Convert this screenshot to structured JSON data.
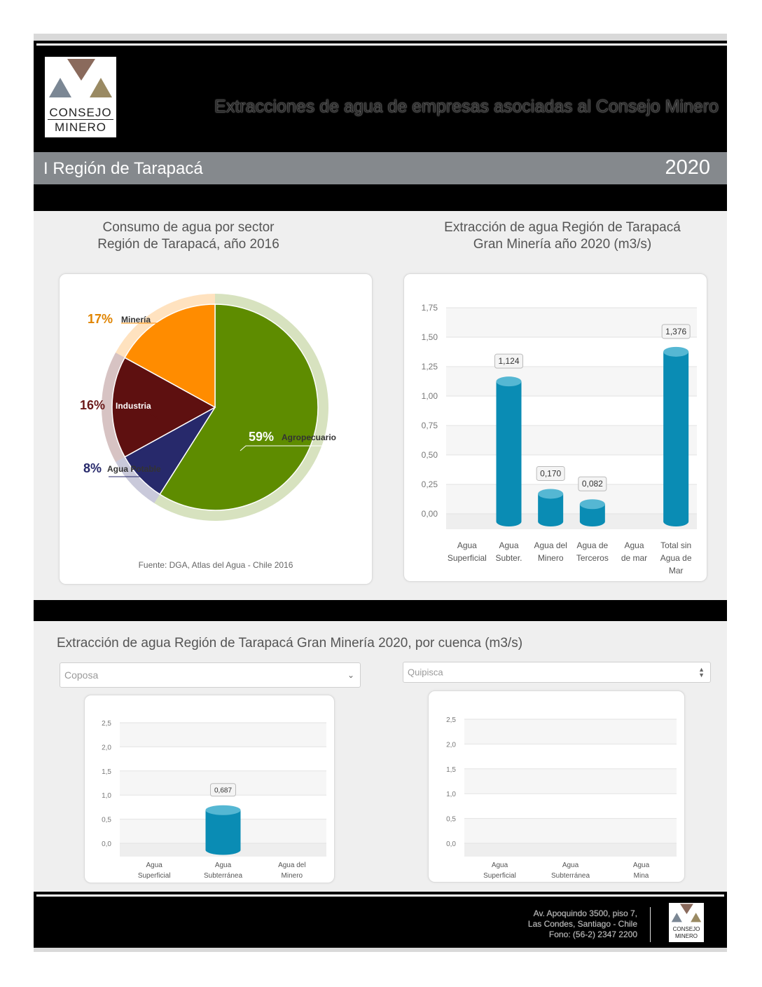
{
  "header": {
    "logo_line1": "CONSEJO",
    "logo_line2": "MINERO",
    "title": "Extracciones de agua de empresas asociadas al Consejo Minero",
    "region": "I Región de Tarapacá",
    "year": "2020"
  },
  "pie_panel": {
    "title_line1": "Consumo de agua por sector",
    "title_line2": "Región de Tarapacá, año 2016",
    "source": "Fuente: DGA, Atlas del Agua - Chile 2016"
  },
  "bar_panel": {
    "title_line1": "Extracción de agua Región de Tarapacá",
    "title_line2": "Gran Minería año 2020 (m3/s)"
  },
  "basin_section": {
    "title": "Extracción de agua Región de Tarapacá Gran Minería 2020, por cuenca (m3/s)",
    "select_left": "Coposa",
    "select_right": "Quipisca"
  },
  "footer": {
    "address_line1": "Av. Apoquindo 3500, piso 7,",
    "address_line2": "Las Condes, Santiago - Chile",
    "phone": "Fono: (56-2) 2347 2200",
    "logo_line1": "CONSEJO",
    "logo_line2": "MINERO"
  },
  "colors": {
    "agropecuario": "#5e8c00",
    "agua_potable": "#27296b",
    "industria": "#5e1010",
    "mineria": "#ff8c00",
    "bar": "#0a8cb4",
    "bar_top": "#55b7d3",
    "label_mineria": "#e08400",
    "label_industria": "#6b1a1a",
    "label_potable": "#27296b"
  },
  "chart_data": [
    {
      "type": "pie",
      "slices": [
        {
          "label": "Agropecuario",
          "pct_label": "59%",
          "value": 59
        },
        {
          "label": "Agua Potable",
          "pct_label": "8%",
          "value": 8
        },
        {
          "label": "Industria",
          "pct_label": "16%",
          "value": 16
        },
        {
          "label": "Minería",
          "pct_label": "17%",
          "value": 17
        }
      ]
    },
    {
      "type": "bar",
      "categories": [
        [
          "Agua",
          "Superficial"
        ],
        [
          "Agua",
          "Subter."
        ],
        [
          "Agua del",
          "Minero"
        ],
        [
          "Agua de",
          "Terceros"
        ],
        [
          "Agua",
          "de mar"
        ],
        [
          "Total sin",
          "Agua de",
          "Mar"
        ]
      ],
      "values": [
        null,
        1.124,
        0.17,
        0.082,
        null,
        1.376
      ],
      "value_labels": [
        "",
        "1,124",
        "0,170",
        "0,082",
        "",
        "1,376"
      ],
      "yticks": [
        "0,00",
        "0,25",
        "0,50",
        "0,75",
        "1,00",
        "1,25",
        "1,50",
        "1,75"
      ],
      "ylim": [
        0,
        1.75
      ]
    },
    {
      "type": "bar",
      "categories": [
        [
          "Agua",
          "Superficial"
        ],
        [
          "Agua",
          "Subterránea"
        ],
        [
          "Agua del",
          "Minero"
        ]
      ],
      "values": [
        null,
        0.687,
        null
      ],
      "value_labels": [
        "",
        "0,687",
        ""
      ],
      "yticks": [
        "0,0",
        "0,5",
        "1,0",
        "1,5",
        "2,0",
        "2,5"
      ],
      "ylim": [
        0,
        2.5
      ]
    },
    {
      "type": "bar",
      "categories": [
        [
          "Agua",
          "Superficial"
        ],
        [
          "Agua",
          "Subterránea"
        ],
        [
          "Agua",
          "Mina"
        ]
      ],
      "values": [
        null,
        null,
        null
      ],
      "value_labels": [
        "",
        "",
        ""
      ],
      "yticks": [
        "0,0",
        "0,5",
        "1,0",
        "1,5",
        "2,0",
        "2,5"
      ],
      "ylim": [
        0,
        2.5
      ]
    }
  ]
}
